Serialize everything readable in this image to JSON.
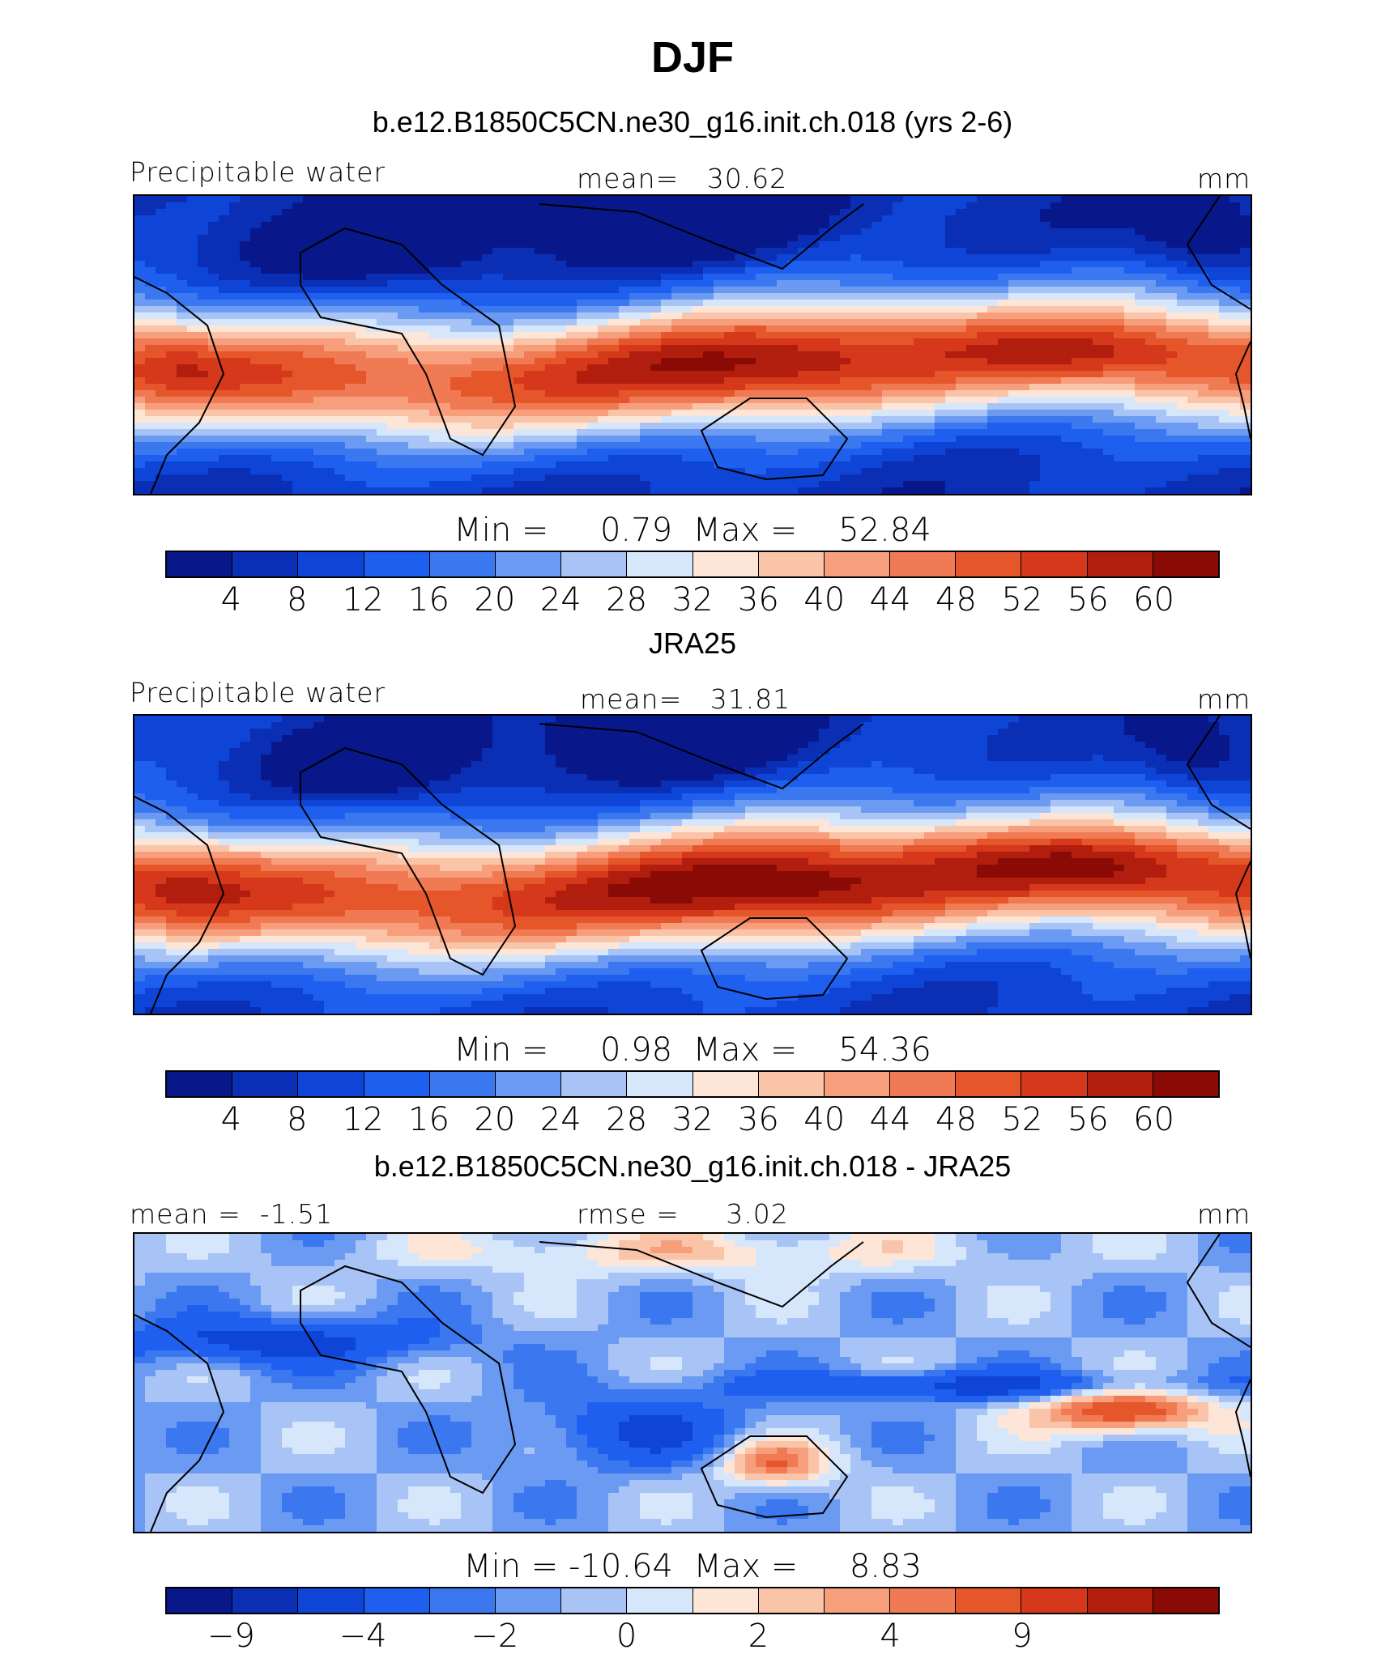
{
  "season": "DJF",
  "palette": [
    "#08188a",
    "#0a2fb5",
    "#0e45d6",
    "#1f5ff0",
    "#3b78f0",
    "#6b9af2",
    "#a8c4f6",
    "#d6e6fb",
    "#fde6d8",
    "#fac4a8",
    "#f79f7d",
    "#f07a53",
    "#e6562b",
    "#d5381a",
    "#b21e0e",
    "#8a0b05"
  ],
  "panels": [
    {
      "title": "b.e12.B1850C5CN.ne30_g16.init.ch.018 (yrs 2-6)",
      "left_label": "Precipitable water",
      "center_label": "mean=   30.62",
      "units": "mm",
      "minmax": "Min =     0.79  Max =    52.84",
      "tick_labels": [
        "4",
        "8",
        "12",
        "16",
        "20",
        "24",
        "28",
        "32",
        "36",
        "40",
        "44",
        "48",
        "52",
        "56",
        "60"
      ],
      "field": "model"
    },
    {
      "title": "JRA25",
      "left_label": "Precipitable water",
      "center_label": "mean=   31.81",
      "units": "mm",
      "minmax": "Min =     0.98  Max =    54.36",
      "tick_labels": [
        "4",
        "8",
        "12",
        "16",
        "20",
        "24",
        "28",
        "32",
        "36",
        "40",
        "44",
        "48",
        "52",
        "56",
        "60"
      ],
      "field": "obs"
    },
    {
      "title": "b.e12.B1850C5CN.ne30_g16.init.ch.018 - JRA25",
      "left_label": "mean =  -1.51",
      "center_label": "rmse =     3.02",
      "units": "mm",
      "minmax": "Min = -10.64  Max =     8.83",
      "tick_labels": [
        "-9",
        "",
        "-4",
        "",
        "-2",
        "",
        "0",
        "",
        "2",
        "",
        "4",
        "",
        "9",
        ""
      ],
      "field": "diff"
    }
  ],
  "chart_data": [
    {
      "type": "heatmap",
      "title": "DJF — b.e12.B1850C5CN.ne30_g16.init.ch.018 (yrs 2-6)",
      "variable": "Precipitable water",
      "units": "mm",
      "mean": 30.62,
      "min": 0.79,
      "max": 52.84,
      "contour_levels": [
        4,
        8,
        12,
        16,
        20,
        24,
        28,
        32,
        36,
        40,
        44,
        48,
        52,
        56,
        60
      ],
      "lon_range": [
        -60,
        300
      ],
      "lat_range": [
        -45,
        45
      ]
    },
    {
      "type": "heatmap",
      "title": "DJF — JRA25",
      "variable": "Precipitable water",
      "units": "mm",
      "mean": 31.81,
      "min": 0.98,
      "max": 54.36,
      "contour_levels": [
        4,
        8,
        12,
        16,
        20,
        24,
        28,
        32,
        36,
        40,
        44,
        48,
        52,
        56,
        60
      ],
      "lon_range": [
        -60,
        300
      ],
      "lat_range": [
        -45,
        45
      ]
    },
    {
      "type": "heatmap",
      "title": "DJF — b.e12.B1850C5CN.ne30_g16.init.ch.018 - JRA25",
      "units": "mm",
      "mean": -1.51,
      "rmse": 3.02,
      "min": -10.64,
      "max": 8.83,
      "contour_levels": [
        -9,
        -6,
        -4,
        -3,
        -2,
        -1,
        0,
        1,
        2,
        3,
        4,
        6,
        9
      ],
      "lon_range": [
        -60,
        300
      ],
      "lat_range": [
        -45,
        45
      ]
    }
  ]
}
